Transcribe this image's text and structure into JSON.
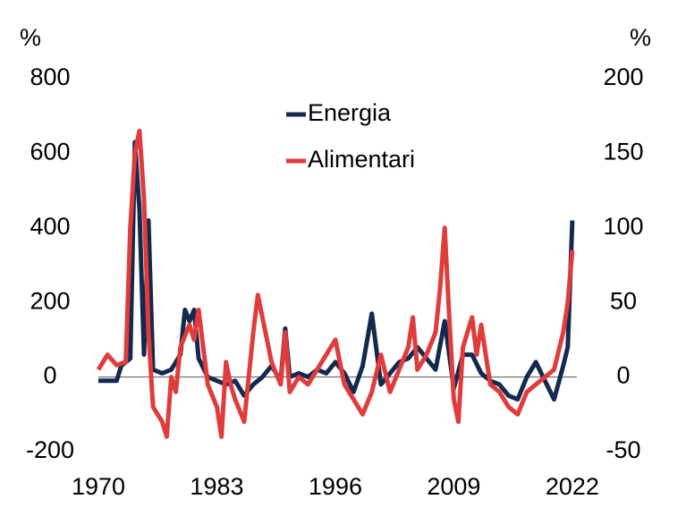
{
  "chart_data": {
    "type": "line",
    "y_label": "%",
    "y2_label": "%",
    "xlim": [
      1970,
      2022.5
    ],
    "xticks": [
      1970,
      1983,
      1996,
      2009,
      2022
    ],
    "ylim": [
      -200,
      800
    ],
    "yticks": [
      -200,
      0,
      200,
      400,
      600,
      800
    ],
    "y2lim": [
      -50,
      200
    ],
    "y2ticks": [
      -50,
      0,
      50,
      100,
      150,
      200
    ],
    "legend": "upper center",
    "series": [
      {
        "name": "Energia",
        "color": "#14294f",
        "axis": "y",
        "x": [
          1970,
          1972,
          1972.5,
          1973,
          1973.5,
          1974,
          1974.5,
          1975,
          1975.5,
          1976,
          1977,
          1978,
          1979,
          1979.5,
          1980,
          1980.5,
          1981,
          1982,
          1983,
          1984,
          1985,
          1986,
          1987,
          1988,
          1989,
          1990,
          1990.5,
          1991,
          1992,
          1993,
          1994,
          1995,
          1996,
          1997,
          1998,
          1999,
          2000,
          2001,
          2002,
          2003,
          2004,
          2005,
          2006,
          2007,
          2008,
          2009,
          2010,
          2011,
          2012,
          2013,
          2014,
          2015,
          2016,
          2017,
          2018,
          2019,
          2020,
          2021,
          2021.5,
          2022
        ],
        "values": [
          -10,
          -10,
          30,
          40,
          50,
          630,
          450,
          60,
          420,
          20,
          10,
          20,
          60,
          180,
          150,
          180,
          50,
          0,
          -10,
          -20,
          -10,
          -50,
          -20,
          0,
          30,
          -10,
          130,
          0,
          10,
          0,
          20,
          10,
          40,
          10,
          -40,
          30,
          170,
          -20,
          10,
          40,
          50,
          80,
          50,
          20,
          150,
          -30,
          60,
          60,
          10,
          -10,
          -20,
          -50,
          -60,
          0,
          40,
          -10,
          -60,
          30,
          80,
          420
        ]
      },
      {
        "name": "Alimentari",
        "color": "#e03c3c",
        "axis": "y2",
        "x": [
          1970,
          1971,
          1972,
          1973,
          1973.5,
          1974,
          1974.5,
          1975,
          1975.5,
          1976,
          1977,
          1977.5,
          1978,
          1978.5,
          1979,
          1980,
          1980.5,
          1981,
          1981.5,
          1982,
          1983,
          1983.5,
          1984,
          1984.5,
          1985,
          1986,
          1986.5,
          1987,
          1987.5,
          1988,
          1989,
          1990,
          1990.5,
          1991,
          1992,
          1993,
          1994,
          1995,
          1996,
          1996.5,
          1997,
          1998,
          1999,
          2000,
          2001,
          2002,
          2003,
          2004,
          2004.5,
          2005,
          2006,
          2007,
          2007.5,
          2008,
          2008.5,
          2009,
          2009.5,
          2010,
          2011,
          2011.5,
          2012,
          2013,
          2014,
          2015,
          2016,
          2017,
          2018,
          2019,
          2020,
          2021,
          2021.5,
          2022
        ],
        "values": [
          5,
          15,
          8,
          10,
          100,
          150,
          165,
          120,
          30,
          -20,
          -30,
          -40,
          0,
          -10,
          20,
          35,
          25,
          45,
          20,
          -5,
          -20,
          -40,
          10,
          -5,
          -15,
          -30,
          0,
          30,
          55,
          40,
          10,
          -5,
          30,
          -10,
          0,
          -5,
          5,
          15,
          25,
          10,
          -5,
          -15,
          -25,
          -10,
          15,
          -10,
          5,
          20,
          40,
          5,
          15,
          30,
          60,
          100,
          40,
          -15,
          -30,
          20,
          40,
          15,
          35,
          -5,
          -10,
          -20,
          -25,
          -10,
          -5,
          0,
          5,
          30,
          50,
          85
        ]
      }
    ]
  }
}
